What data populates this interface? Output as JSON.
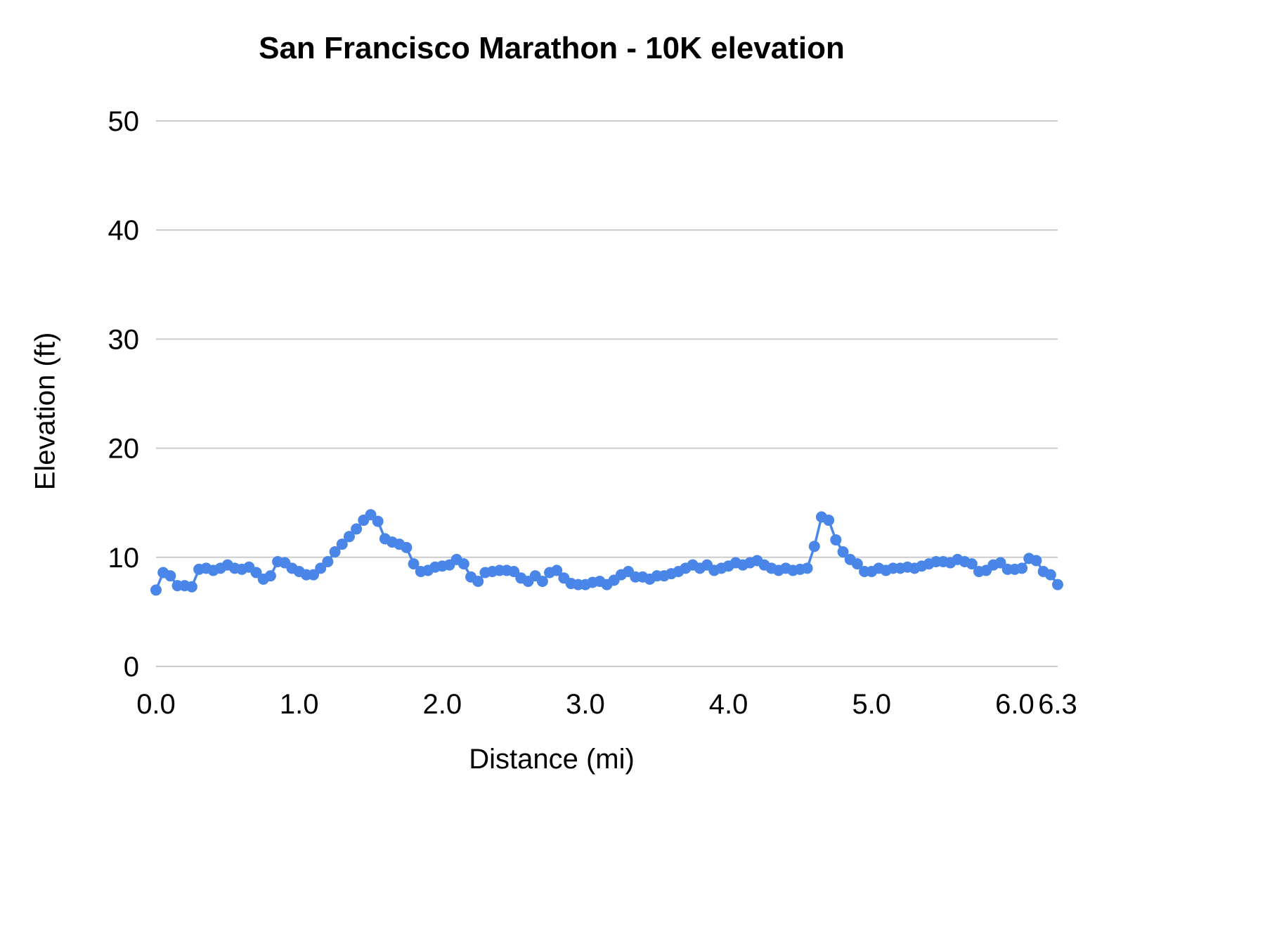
{
  "page": {
    "background": "#ffffff"
  },
  "chart_data": {
    "type": "line",
    "title": "San Francisco Marathon - 10K elevation",
    "xlabel": "Distance (mi)",
    "ylabel": "Elevation (ft)",
    "xlim": [
      0,
      6.3
    ],
    "ylim": [
      0,
      50
    ],
    "grid": "horizontal-only",
    "legend": "none",
    "colors": {
      "series": "#4a86e8",
      "gridline": "#cccccc",
      "text": "#000000"
    },
    "marker": "circle",
    "xticks": {
      "values": [
        0,
        1,
        2,
        3,
        4,
        5,
        6,
        6.3
      ],
      "labels": [
        "0.0",
        "1.0",
        "2.0",
        "3.0",
        "4.0",
        "5.0",
        "6.0",
        "6.3"
      ]
    },
    "yticks": {
      "values": [
        0,
        10,
        20,
        30,
        40,
        50
      ],
      "labels": [
        "0",
        "10",
        "20",
        "30",
        "40",
        "50"
      ]
    },
    "series": [
      {
        "name": "Elevation (ft)",
        "x": [
          0,
          0.05,
          0.1,
          0.15,
          0.2,
          0.25,
          0.3,
          0.35,
          0.4,
          0.45,
          0.5,
          0.55,
          0.6,
          0.65,
          0.7,
          0.75,
          0.8,
          0.85,
          0.9,
          0.95,
          1,
          1.05,
          1.1,
          1.15,
          1.2,
          1.25,
          1.3,
          1.35,
          1.4,
          1.45,
          1.5,
          1.55,
          1.6,
          1.65,
          1.7,
          1.75,
          1.8,
          1.85,
          1.9,
          1.95,
          2,
          2.05,
          2.1,
          2.15,
          2.2,
          2.25,
          2.3,
          2.35,
          2.4,
          2.45,
          2.5,
          2.55,
          2.6,
          2.65,
          2.7,
          2.75,
          2.8,
          2.85,
          2.9,
          2.95,
          3,
          3.05,
          3.1,
          3.15,
          3.2,
          3.25,
          3.3,
          3.35,
          3.4,
          3.45,
          3.5,
          3.55,
          3.6,
          3.65,
          3.7,
          3.75,
          3.8,
          3.85,
          3.9,
          3.95,
          4,
          4.05,
          4.1,
          4.15,
          4.2,
          4.25,
          4.3,
          4.35,
          4.4,
          4.45,
          4.5,
          4.55,
          4.6,
          4.65,
          4.7,
          4.75,
          4.8,
          4.85,
          4.9,
          4.95,
          5,
          5.05,
          5.1,
          5.15,
          5.2,
          5.25,
          5.3,
          5.35,
          5.4,
          5.45,
          5.5,
          5.55,
          5.6,
          5.65,
          5.7,
          5.75,
          5.8,
          5.85,
          5.9,
          5.95,
          6,
          6.05,
          6.1,
          6.15,
          6.2,
          6.25,
          6.3
        ],
        "y": [
          7.0,
          8.6,
          8.3,
          7.4,
          7.4,
          7.3,
          8.9,
          9.0,
          8.8,
          9.0,
          9.3,
          9.0,
          8.9,
          9.1,
          8.6,
          8.0,
          8.3,
          9.6,
          9.5,
          9.0,
          8.7,
          8.4,
          8.4,
          9.0,
          9.6,
          10.5,
          11.2,
          11.9,
          12.6,
          13.4,
          13.9,
          13.3,
          11.7,
          11.4,
          11.2,
          10.9,
          9.4,
          8.7,
          8.8,
          9.1,
          9.2,
          9.3,
          9.8,
          9.4,
          8.2,
          7.8,
          8.6,
          8.7,
          8.8,
          8.8,
          8.7,
          8.1,
          7.8,
          8.3,
          7.8,
          8.6,
          8.8,
          8.1,
          7.6,
          7.5,
          7.5,
          7.7,
          7.8,
          7.5,
          7.9,
          8.4,
          8.7,
          8.2,
          8.2,
          8.0,
          8.3,
          8.3,
          8.5,
          8.7,
          9.0,
          9.3,
          9.0,
          9.3,
          8.8,
          9.0,
          9.2,
          9.5,
          9.3,
          9.5,
          9.7,
          9.3,
          9.0,
          8.8,
          9.0,
          8.8,
          8.9,
          9.0,
          11.0,
          13.7,
          13.4,
          11.6,
          10.5,
          9.8,
          9.4,
          8.7,
          8.7,
          9.0,
          8.8,
          9.0,
          9.0,
          9.1,
          9.0,
          9.2,
          9.4,
          9.6,
          9.6,
          9.5,
          9.8,
          9.6,
          9.4,
          8.7,
          8.8,
          9.3,
          9.5,
          8.9,
          8.9,
          9.0,
          9.9,
          9.7,
          8.7,
          8.4,
          7.5
        ]
      }
    ]
  }
}
